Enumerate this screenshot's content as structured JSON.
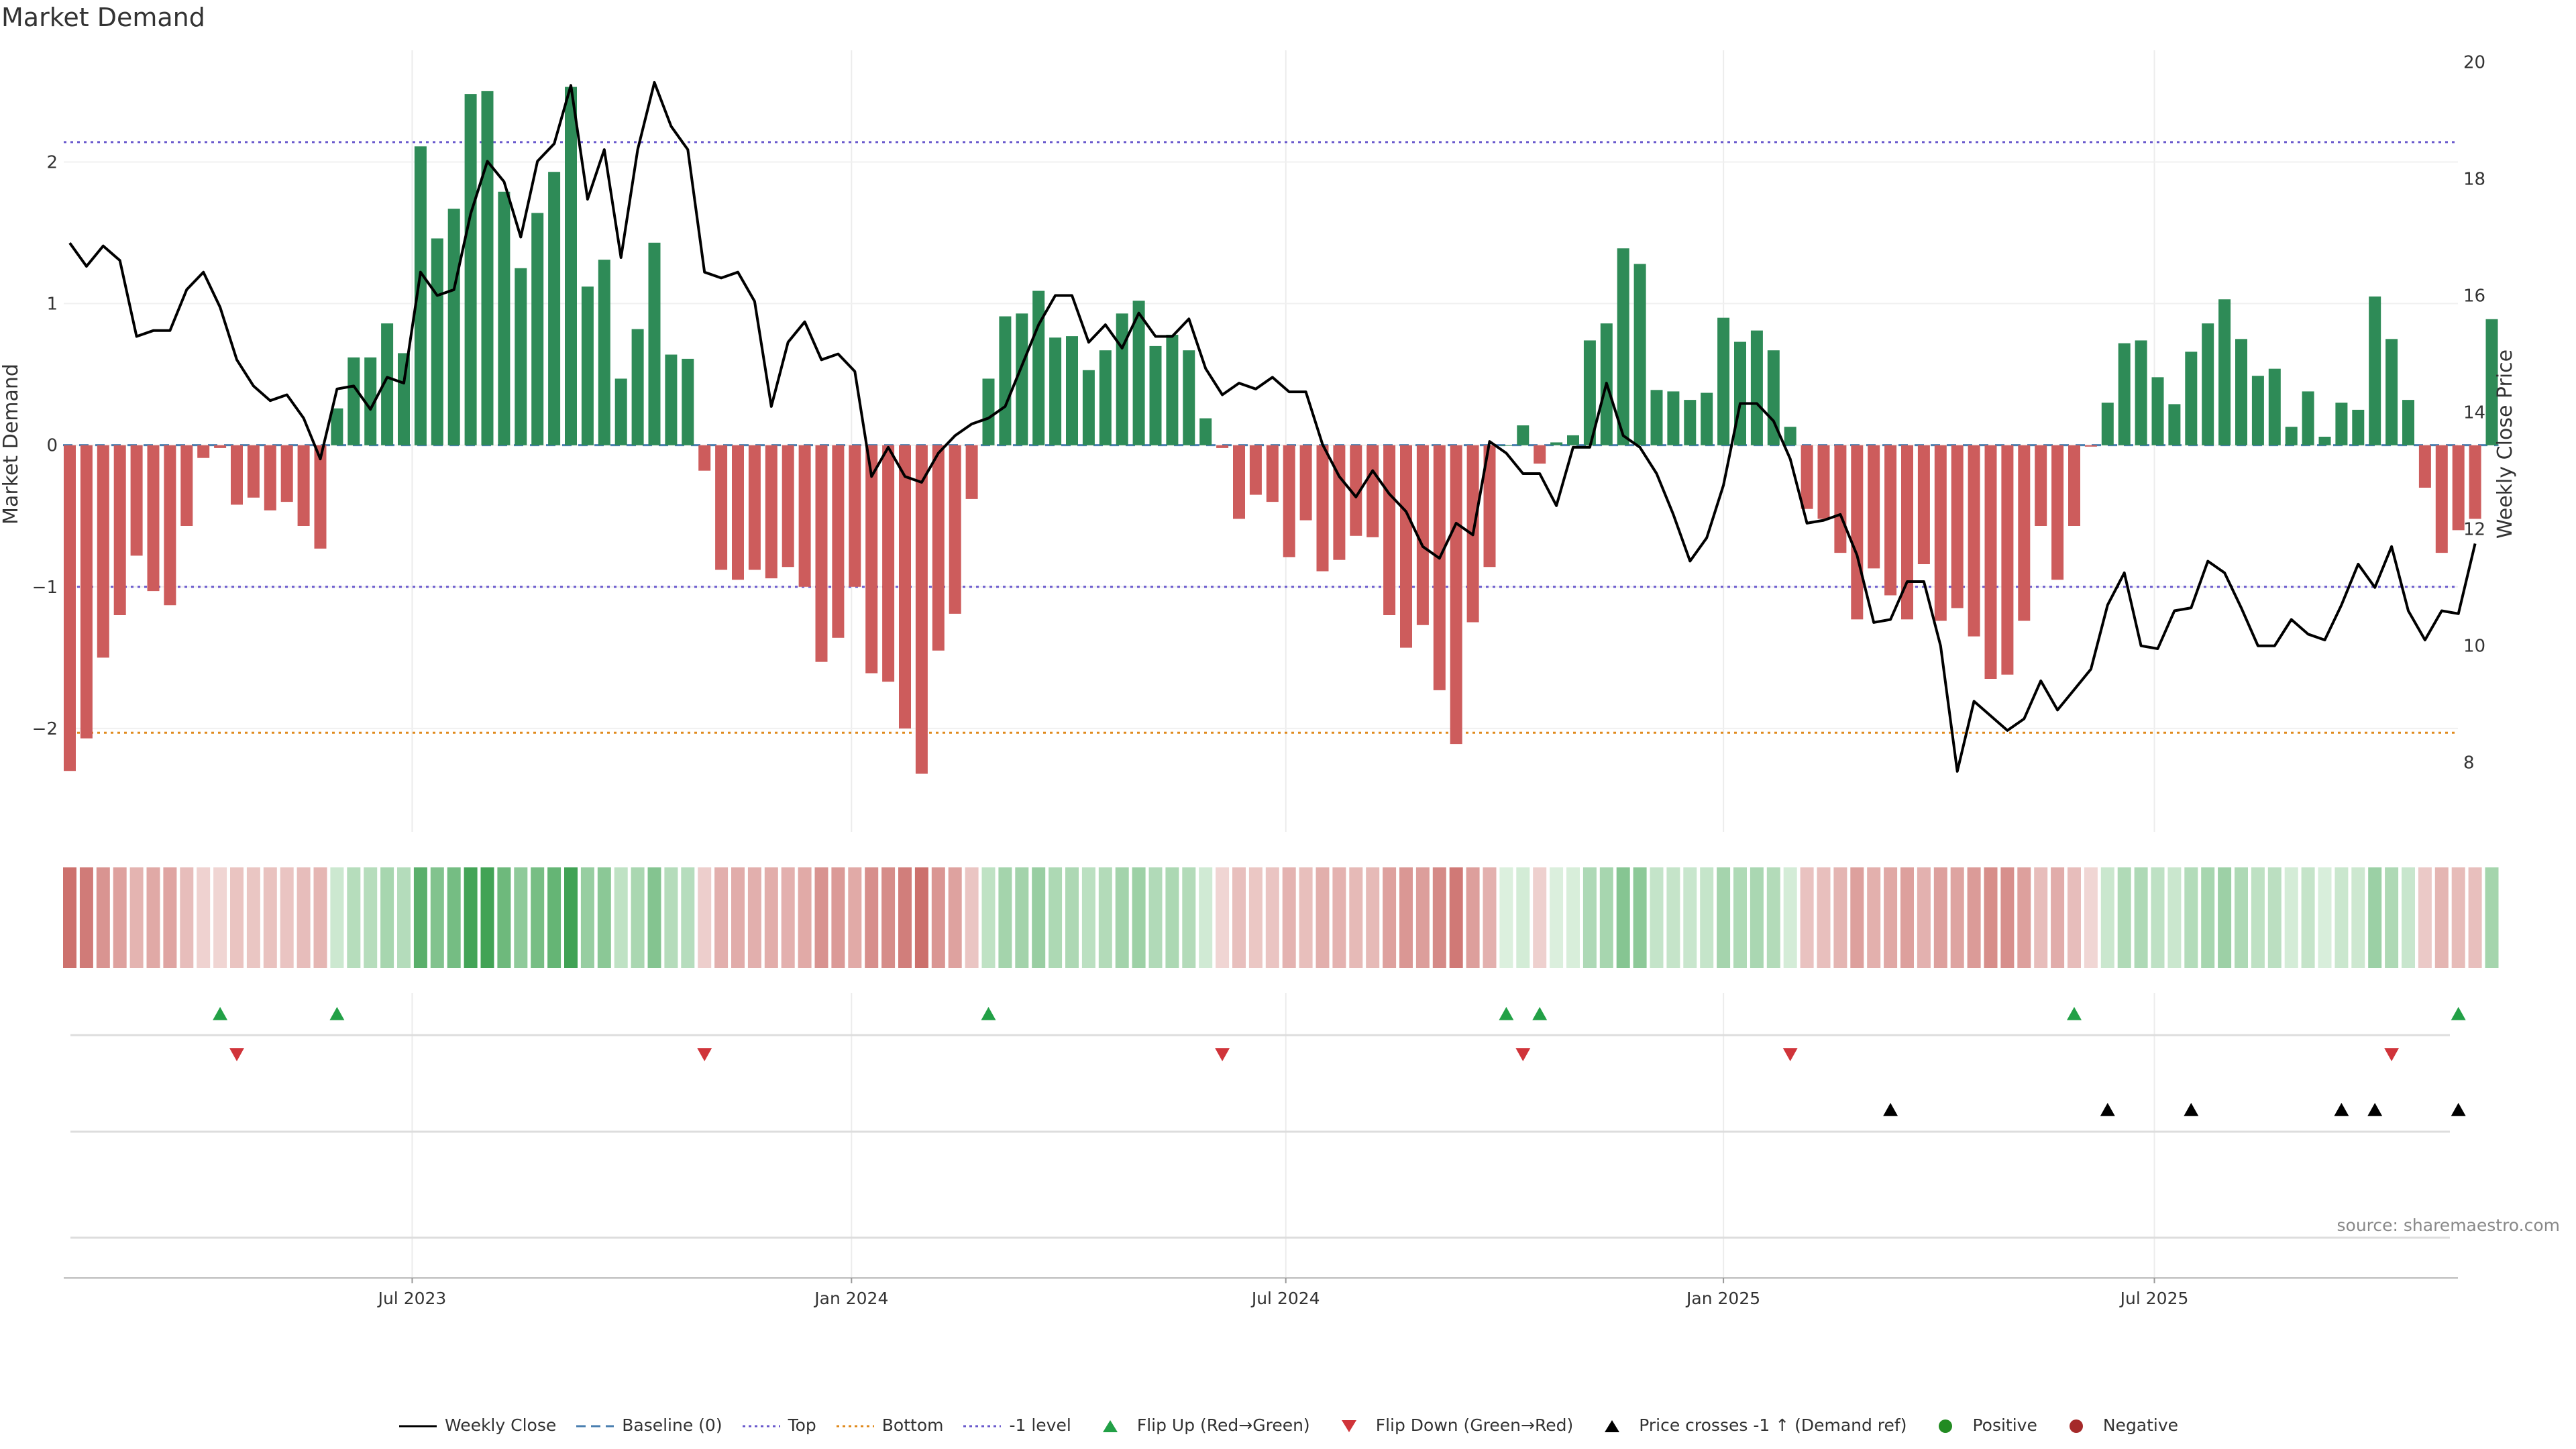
{
  "title": "Market Demand",
  "source": "source: sharemaestro.com",
  "colors": {
    "positive": "#2e8b57",
    "negative": "#cd5c5c",
    "price": "#000000",
    "baseline": "#4a7fb0",
    "top": "#6a5acd",
    "bottom": "#e08a1e",
    "minus_one": "#6a5acd",
    "flip_up": "#22a046",
    "flip_down": "#d0343a",
    "legend_positive": "#228b22",
    "legend_negative": "#a52a2a"
  },
  "legend": [
    {
      "label": "Weekly Close",
      "symbol": "line"
    },
    {
      "label": "Baseline (0)",
      "symbol": "dash"
    },
    {
      "label": "Top",
      "symbol": "dot-purple"
    },
    {
      "label": "Bottom",
      "symbol": "dot-orange"
    },
    {
      "label": "-1 level",
      "symbol": "dot-purple"
    },
    {
      "label": "Flip Up (Red→Green)",
      "symbol": "tri-up-green"
    },
    {
      "label": "Flip Down (Green→Red)",
      "symbol": "tri-down-red"
    },
    {
      "label": "Price crosses -1 ↑ (Demand ref)",
      "symbol": "tri-up-black"
    },
    {
      "label": "Positive",
      "symbol": "circle-green"
    },
    {
      "label": "Negative",
      "symbol": "circle-red"
    }
  ],
  "chart_data": {
    "type": "bar",
    "title": "Market Demand",
    "ylabel": "Market Demand",
    "y2label": "Weekly Close Price",
    "ylim": [
      -2.55,
      2.85
    ],
    "yticks": [
      -2,
      -1,
      0,
      1,
      2
    ],
    "y2lim": [
      7.25,
      20.35
    ],
    "y2ticks": [
      8,
      10,
      12,
      14,
      16,
      18,
      20
    ],
    "top_level": 2.14,
    "bottom_level": -2.03,
    "minus_one_level": -1.0,
    "week_range": [
      0,
      144
    ],
    "xtick_weeks": [
      20.5,
      46.8,
      72.8,
      99.0,
      124.8
    ],
    "xtick_labels": [
      "Jul 2023",
      "Jan 2024",
      "Jul 2024",
      "Jan 2025",
      "Jul 2025"
    ],
    "demand": [
      -2.3,
      -2.07,
      -1.5,
      -1.2,
      -0.78,
      -1.03,
      -1.13,
      -0.57,
      -0.09,
      -0.02,
      -0.42,
      -0.37,
      -0.46,
      -0.4,
      -0.57,
      -0.73,
      0.26,
      0.62,
      0.62,
      0.86,
      0.65,
      2.11,
      1.46,
      1.67,
      2.48,
      2.5,
      1.79,
      1.25,
      1.64,
      1.93,
      2.53,
      1.12,
      1.31,
      0.47,
      0.82,
      1.43,
      0.64,
      0.61,
      -0.18,
      -0.88,
      -0.95,
      -0.88,
      -0.94,
      -0.86,
      -1.0,
      -1.53,
      -1.36,
      -1.0,
      -1.61,
      -1.67,
      -2.0,
      -2.32,
      -1.45,
      -1.19,
      -0.38,
      0.47,
      0.91,
      0.93,
      1.09,
      0.76,
      0.77,
      0.53,
      0.67,
      0.93,
      1.02,
      0.7,
      0.78,
      0.67,
      0.19,
      -0.02,
      -0.52,
      -0.35,
      -0.4,
      -0.79,
      -0.53,
      -0.89,
      -0.81,
      -0.64,
      -0.65,
      -1.2,
      -1.43,
      -1.27,
      -1.73,
      -2.11,
      -1.25,
      -0.86,
      0.0,
      0.14,
      -0.13,
      0.02,
      0.07,
      0.74,
      0.86,
      1.39,
      1.28,
      0.39,
      0.38,
      0.32,
      0.37,
      0.9,
      0.73,
      0.81,
      0.67,
      0.13,
      -0.45,
      -0.52,
      -0.76,
      -1.23,
      -0.87,
      -1.06,
      -1.23,
      -0.84,
      -1.24,
      -1.15,
      -1.35,
      -1.65,
      -1.62,
      -1.24,
      -0.57,
      -0.95,
      -0.57,
      -0.01,
      0.3,
      0.72,
      0.74,
      0.48,
      0.29,
      0.66,
      0.86,
      1.03,
      0.75,
      0.49,
      0.54,
      0.13,
      0.38,
      0.06,
      0.3,
      0.25,
      1.05,
      0.75,
      0.32,
      -0.3,
      -0.76,
      -0.6,
      -0.52,
      0.89
    ],
    "close": [
      16.9,
      16.5,
      16.85,
      16.6,
      15.3,
      15.4,
      15.4,
      16.1,
      16.4,
      15.8,
      14.9,
      14.45,
      14.2,
      14.3,
      13.9,
      13.2,
      14.4,
      14.45,
      14.05,
      14.6,
      14.5,
      16.4,
      16.0,
      16.1,
      17.4,
      18.3,
      17.95,
      17.0,
      18.3,
      18.6,
      19.6,
      17.65,
      18.5,
      16.65,
      18.5,
      19.65,
      18.9,
      18.5,
      16.4,
      16.3,
      16.4,
      15.9,
      14.1,
      15.2,
      15.55,
      14.9,
      15.0,
      14.7,
      12.9,
      13.4,
      12.9,
      12.8,
      13.3,
      13.6,
      13.8,
      13.9,
      14.1,
      14.8,
      15.5,
      16.0,
      16.0,
      15.2,
      15.5,
      15.1,
      15.7,
      15.3,
      15.3,
      15.6,
      14.75,
      14.3,
      14.5,
      14.4,
      14.6,
      14.35,
      14.35,
      13.45,
      12.9,
      12.55,
      13.0,
      12.6,
      12.3,
      11.7,
      11.5,
      12.1,
      11.9,
      13.5,
      13.3,
      12.95,
      12.95,
      12.4,
      13.4,
      13.4,
      14.5,
      13.6,
      13.4,
      12.95,
      12.25,
      11.45,
      11.85,
      12.75,
      14.15,
      14.15,
      13.85,
      13.2,
      12.1,
      12.15,
      12.25,
      11.55,
      10.4,
      10.45,
      11.1,
      11.1,
      10.0,
      7.85,
      9.05,
      8.8,
      8.55,
      8.75,
      9.4,
      8.9,
      9.25,
      9.6,
      10.7,
      11.25,
      10.0,
      9.95,
      10.6,
      10.65,
      11.45,
      11.25,
      10.65,
      10.0,
      10.0,
      10.45,
      10.2,
      10.1,
      10.7,
      11.4,
      11.0,
      11.7,
      10.6,
      10.1,
      10.6,
      10.55,
      11.75
    ],
    "flip_up_weeks": [
      9,
      16,
      55,
      86,
      88,
      120,
      143
    ],
    "flip_down_weeks": [
      10,
      38,
      69,
      87,
      103,
      139
    ],
    "price_cross_weeks": [
      109,
      122,
      127,
      136,
      138,
      143
    ]
  }
}
